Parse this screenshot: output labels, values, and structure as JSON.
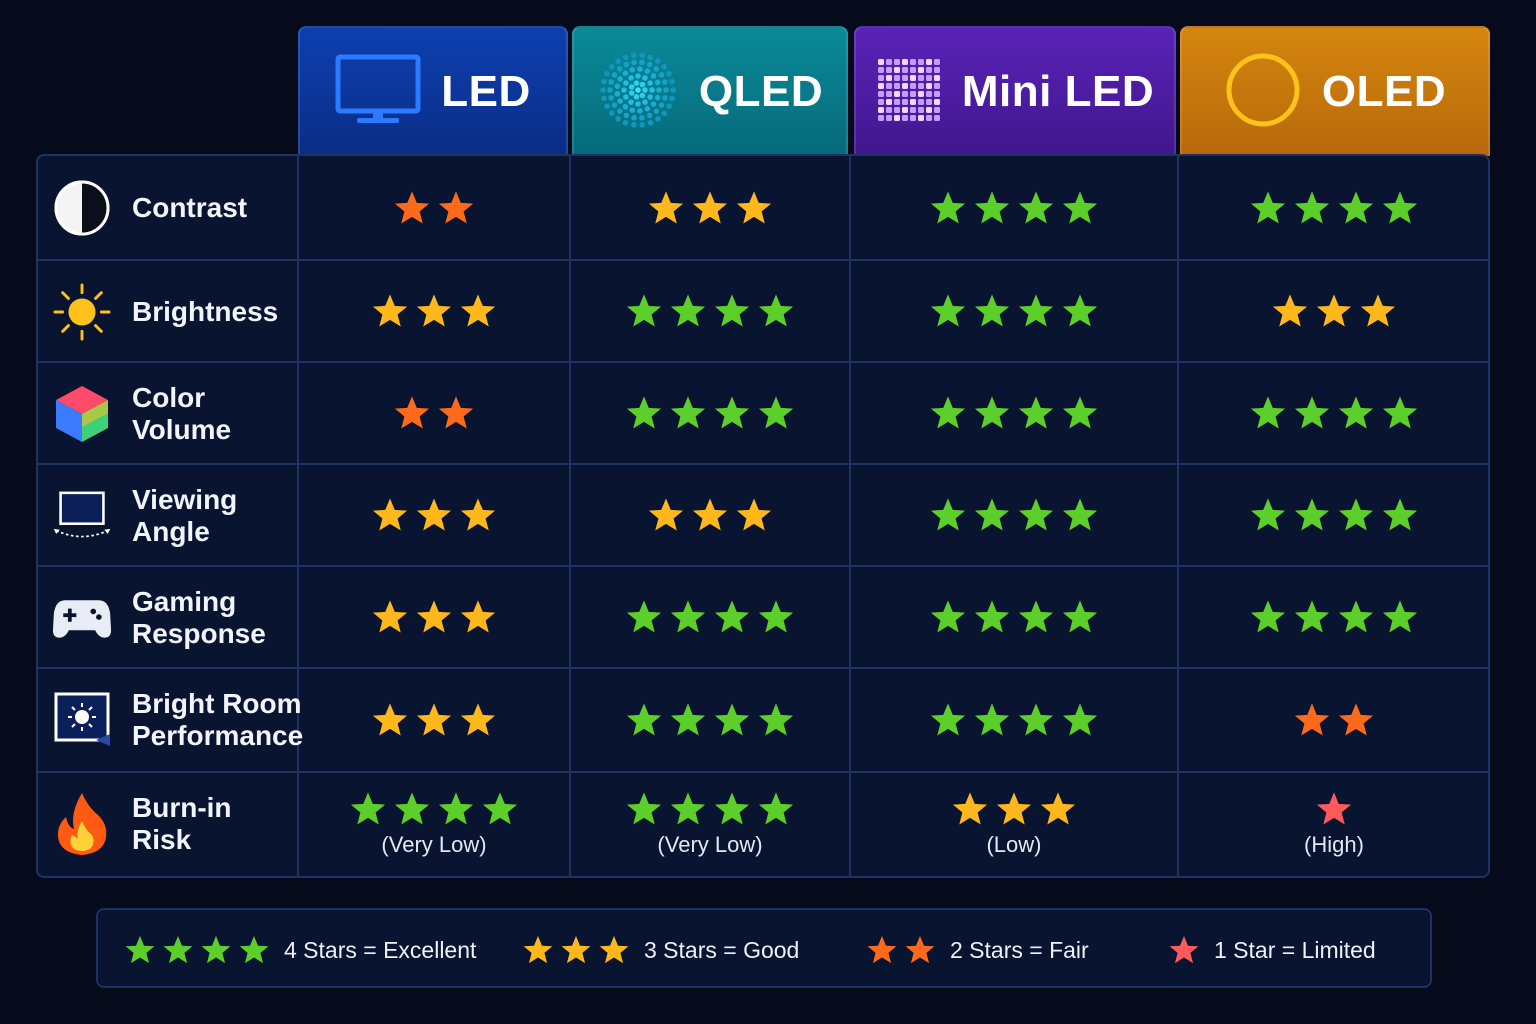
{
  "colors": {
    "excellent": "#5ccf2a",
    "good": "#ffb81c",
    "fair": "#ff6a1a",
    "limited": "#ff5a5a"
  },
  "chart_data": {
    "type": "table",
    "columns": [
      {
        "key": "led",
        "label": "LED",
        "icon": "monitor-icon",
        "color": "#0d3fb0"
      },
      {
        "key": "qled",
        "label": "QLED",
        "icon": "dots-circle-icon",
        "color": "#0a8a98"
      },
      {
        "key": "mini",
        "label": "Mini LED",
        "icon": "dot-grid-icon",
        "color": "#5a22b8"
      },
      {
        "key": "oled",
        "label": "OLED",
        "icon": "ring-icon",
        "color": "#d4860e"
      }
    ],
    "rows": [
      {
        "label": "Contrast",
        "icon": "contrast-icon",
        "ratings": [
          2,
          3,
          4,
          4
        ],
        "notes": []
      },
      {
        "label": "Brightness",
        "icon": "sun-icon",
        "ratings": [
          3,
          4,
          4,
          3
        ],
        "notes": []
      },
      {
        "label": "Color Volume",
        "icon": "cube-icon",
        "ratings": [
          2,
          4,
          4,
          4
        ],
        "notes": []
      },
      {
        "label": "Viewing Angle",
        "icon": "viewing-angle-icon",
        "ratings": [
          3,
          3,
          4,
          4
        ],
        "notes": []
      },
      {
        "label": "Gaming Response",
        "icon": "gamepad-icon",
        "ratings": [
          3,
          4,
          4,
          4
        ],
        "notes": []
      },
      {
        "label": "Bright Room Performance",
        "icon": "bright-room-icon",
        "ratings": [
          3,
          4,
          4,
          2
        ],
        "notes": []
      },
      {
        "label": "Burn-in Risk",
        "icon": "flame-icon",
        "ratings": [
          4,
          4,
          3,
          1
        ],
        "notes": [
          "(Very Low)",
          "(Very Low)",
          "(Low)",
          "(High)"
        ]
      }
    ],
    "legend": [
      {
        "stars": 4,
        "text": "4  Stars = Excellent"
      },
      {
        "stars": 3,
        "text": "3  Stars = Good"
      },
      {
        "stars": 2,
        "text": "2  Stars = Fair"
      },
      {
        "stars": 1,
        "text": "1  Star = Limited"
      }
    ]
  }
}
